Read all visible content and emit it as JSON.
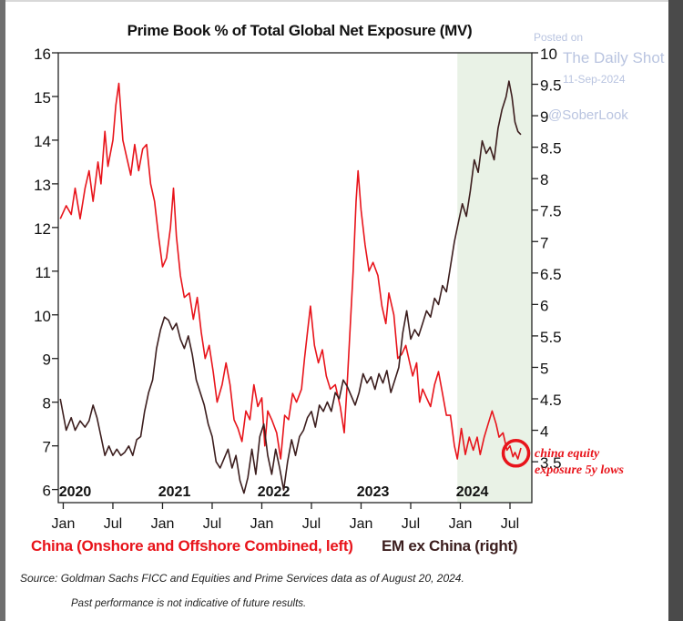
{
  "watermark": {
    "line1": "Posted on",
    "line2": "The Daily Shot",
    "line3": "11-Sep-2024",
    "line4": "@SoberLook"
  },
  "footer": {
    "source": "Source: Goldman Sachs FICC and Equities and Prime Services data as of August 20, 2024.",
    "disclaimer": "Past performance is not indicative of future results."
  },
  "chart_data": {
    "type": "line",
    "title": "Prime Book % of Total Global Net Exposure (MV)",
    "x_range": [
      2019.95,
      2024.72
    ],
    "left_axis": {
      "min": 5.7,
      "max": 16,
      "ticks": [
        6,
        7,
        8,
        9,
        10,
        11,
        12,
        13,
        14,
        15,
        16
      ]
    },
    "right_axis": {
      "min": 2.85,
      "max": 10,
      "ticks": [
        3.5,
        4,
        4.5,
        5,
        5.5,
        6,
        6.5,
        7,
        7.5,
        8,
        8.5,
        9,
        9.5,
        10
      ]
    },
    "year_labels": [
      {
        "label": "2020",
        "x": 2020.12
      },
      {
        "label": "2021",
        "x": 2021.12
      },
      {
        "label": "2022",
        "x": 2022.12
      },
      {
        "label": "2023",
        "x": 2023.12
      },
      {
        "label": "2024",
        "x": 2024.12
      }
    ],
    "month_ticks": [
      {
        "label": "Jan",
        "x": 2020.0
      },
      {
        "label": "Jul",
        "x": 2020.5
      },
      {
        "label": "Jan",
        "x": 2021.0
      },
      {
        "label": "Jul",
        "x": 2021.5
      },
      {
        "label": "Jan",
        "x": 2022.0
      },
      {
        "label": "Jul",
        "x": 2022.5
      },
      {
        "label": "Jan",
        "x": 2023.0
      },
      {
        "label": "Jul",
        "x": 2023.5
      },
      {
        "label": "Jan",
        "x": 2024.0
      },
      {
        "label": "Jul",
        "x": 2024.5
      }
    ],
    "shaded_region": {
      "from": 2023.97,
      "to": 2024.72,
      "color": "#e9f2e6"
    },
    "series": [
      {
        "name": "China (Onshore and Offshore Combined, left)",
        "axis": "left",
        "color": "#e8141b",
        "points": [
          [
            2019.97,
            12.2
          ],
          [
            2020.03,
            12.5
          ],
          [
            2020.08,
            12.3
          ],
          [
            2020.12,
            12.9
          ],
          [
            2020.17,
            12.2
          ],
          [
            2020.22,
            12.9
          ],
          [
            2020.26,
            13.3
          ],
          [
            2020.3,
            12.6
          ],
          [
            2020.35,
            13.5
          ],
          [
            2020.38,
            13.0
          ],
          [
            2020.42,
            14.2
          ],
          [
            2020.45,
            13.4
          ],
          [
            2020.5,
            14.0
          ],
          [
            2020.53,
            14.8
          ],
          [
            2020.56,
            15.3
          ],
          [
            2020.6,
            14.0
          ],
          [
            2020.64,
            13.6
          ],
          [
            2020.68,
            13.2
          ],
          [
            2020.72,
            13.9
          ],
          [
            2020.76,
            13.3
          ],
          [
            2020.8,
            13.8
          ],
          [
            2020.84,
            13.9
          ],
          [
            2020.88,
            13.0
          ],
          [
            2020.92,
            12.6
          ],
          [
            2020.96,
            11.8
          ],
          [
            2021.0,
            11.1
          ],
          [
            2021.04,
            11.3
          ],
          [
            2021.08,
            12.0
          ],
          [
            2021.11,
            12.9
          ],
          [
            2021.14,
            11.8
          ],
          [
            2021.18,
            10.9
          ],
          [
            2021.22,
            10.4
          ],
          [
            2021.27,
            10.5
          ],
          [
            2021.31,
            9.9
          ],
          [
            2021.35,
            10.4
          ],
          [
            2021.39,
            9.6
          ],
          [
            2021.43,
            9.0
          ],
          [
            2021.47,
            9.3
          ],
          [
            2021.51,
            8.7
          ],
          [
            2021.55,
            8.0
          ],
          [
            2021.6,
            8.4
          ],
          [
            2021.64,
            8.9
          ],
          [
            2021.68,
            8.4
          ],
          [
            2021.72,
            7.6
          ],
          [
            2021.76,
            7.4
          ],
          [
            2021.8,
            7.1
          ],
          [
            2021.84,
            7.8
          ],
          [
            2021.88,
            7.6
          ],
          [
            2021.92,
            8.4
          ],
          [
            2021.96,
            7.9
          ],
          [
            2022.0,
            8.1
          ],
          [
            2022.03,
            7.0
          ],
          [
            2022.06,
            7.8
          ],
          [
            2022.1,
            7.6
          ],
          [
            2022.15,
            7.3
          ],
          [
            2022.19,
            6.7
          ],
          [
            2022.23,
            7.7
          ],
          [
            2022.27,
            7.6
          ],
          [
            2022.31,
            8.2
          ],
          [
            2022.35,
            8.0
          ],
          [
            2022.4,
            8.3
          ],
          [
            2022.43,
            9.0
          ],
          [
            2022.46,
            9.6
          ],
          [
            2022.49,
            10.2
          ],
          [
            2022.53,
            9.3
          ],
          [
            2022.57,
            8.9
          ],
          [
            2022.61,
            9.2
          ],
          [
            2022.65,
            8.6
          ],
          [
            2022.69,
            8.3
          ],
          [
            2022.74,
            8.4
          ],
          [
            2022.79,
            7.9
          ],
          [
            2022.83,
            7.3
          ],
          [
            2022.86,
            8.4
          ],
          [
            2022.89,
            9.7
          ],
          [
            2022.92,
            11.0
          ],
          [
            2022.95,
            12.6
          ],
          [
            2022.97,
            13.3
          ],
          [
            2023.0,
            12.4
          ],
          [
            2023.04,
            11.6
          ],
          [
            2023.08,
            11.0
          ],
          [
            2023.12,
            11.2
          ],
          [
            2023.17,
            10.9
          ],
          [
            2023.21,
            10.2
          ],
          [
            2023.25,
            9.8
          ],
          [
            2023.28,
            10.5
          ],
          [
            2023.33,
            10.0
          ],
          [
            2023.37,
            9.0
          ],
          [
            2023.41,
            9.1
          ],
          [
            2023.45,
            9.3
          ],
          [
            2023.49,
            8.9
          ],
          [
            2023.52,
            8.6
          ],
          [
            2023.56,
            8.9
          ],
          [
            2023.59,
            8.0
          ],
          [
            2023.62,
            8.3
          ],
          [
            2023.66,
            8.1
          ],
          [
            2023.7,
            7.9
          ],
          [
            2023.74,
            8.4
          ],
          [
            2023.78,
            8.7
          ],
          [
            2023.82,
            8.2
          ],
          [
            2023.86,
            7.7
          ],
          [
            2023.9,
            7.7
          ],
          [
            2023.94,
            7.0
          ],
          [
            2023.97,
            6.7
          ],
          [
            2024.01,
            7.4
          ],
          [
            2024.05,
            6.8
          ],
          [
            2024.09,
            7.2
          ],
          [
            2024.13,
            6.9
          ],
          [
            2024.17,
            7.2
          ],
          [
            2024.2,
            6.8
          ],
          [
            2024.24,
            7.2
          ],
          [
            2024.28,
            7.5
          ],
          [
            2024.32,
            7.8
          ],
          [
            2024.36,
            7.5
          ],
          [
            2024.39,
            7.2
          ],
          [
            2024.43,
            7.3
          ],
          [
            2024.47,
            6.9
          ],
          [
            2024.5,
            7.0
          ],
          [
            2024.53,
            6.75
          ],
          [
            2024.55,
            6.85
          ],
          [
            2024.58,
            6.7
          ],
          [
            2024.61,
            6.95
          ]
        ]
      },
      {
        "name": "EM ex China (right)",
        "axis": "right",
        "color": "#3c1e1e",
        "points": [
          [
            2019.97,
            4.5
          ],
          [
            2020.03,
            4.0
          ],
          [
            2020.08,
            4.2
          ],
          [
            2020.12,
            4.0
          ],
          [
            2020.17,
            4.15
          ],
          [
            2020.22,
            4.05
          ],
          [
            2020.26,
            4.15
          ],
          [
            2020.3,
            4.4
          ],
          [
            2020.34,
            4.2
          ],
          [
            2020.38,
            3.9
          ],
          [
            2020.42,
            3.6
          ],
          [
            2020.46,
            3.75
          ],
          [
            2020.5,
            3.6
          ],
          [
            2020.54,
            3.7
          ],
          [
            2020.58,
            3.6
          ],
          [
            2020.62,
            3.65
          ],
          [
            2020.66,
            3.75
          ],
          [
            2020.7,
            3.6
          ],
          [
            2020.74,
            3.85
          ],
          [
            2020.78,
            3.9
          ],
          [
            2020.82,
            4.3
          ],
          [
            2020.86,
            4.6
          ],
          [
            2020.9,
            4.8
          ],
          [
            2020.94,
            5.3
          ],
          [
            2020.98,
            5.6
          ],
          [
            2021.02,
            5.8
          ],
          [
            2021.06,
            5.75
          ],
          [
            2021.1,
            5.6
          ],
          [
            2021.14,
            5.7
          ],
          [
            2021.18,
            5.45
          ],
          [
            2021.22,
            5.3
          ],
          [
            2021.26,
            5.5
          ],
          [
            2021.3,
            5.2
          ],
          [
            2021.34,
            4.8
          ],
          [
            2021.38,
            4.6
          ],
          [
            2021.42,
            4.4
          ],
          [
            2021.46,
            4.1
          ],
          [
            2021.5,
            3.9
          ],
          [
            2021.54,
            3.5
          ],
          [
            2021.58,
            3.4
          ],
          [
            2021.62,
            3.55
          ],
          [
            2021.66,
            3.7
          ],
          [
            2021.7,
            3.4
          ],
          [
            2021.74,
            3.6
          ],
          [
            2021.78,
            3.2
          ],
          [
            2021.82,
            3.0
          ],
          [
            2021.86,
            3.25
          ],
          [
            2021.9,
            3.7
          ],
          [
            2021.94,
            3.3
          ],
          [
            2021.98,
            3.9
          ],
          [
            2022.02,
            4.1
          ],
          [
            2022.06,
            3.6
          ],
          [
            2022.1,
            3.3
          ],
          [
            2022.14,
            3.7
          ],
          [
            2022.18,
            3.4
          ],
          [
            2022.22,
            3.05
          ],
          [
            2022.26,
            3.5
          ],
          [
            2022.3,
            3.85
          ],
          [
            2022.34,
            3.6
          ],
          [
            2022.38,
            3.9
          ],
          [
            2022.42,
            4.0
          ],
          [
            2022.46,
            4.2
          ],
          [
            2022.5,
            4.3
          ],
          [
            2022.54,
            4.05
          ],
          [
            2022.58,
            4.4
          ],
          [
            2022.62,
            4.3
          ],
          [
            2022.66,
            4.45
          ],
          [
            2022.7,
            4.3
          ],
          [
            2022.74,
            4.6
          ],
          [
            2022.78,
            4.5
          ],
          [
            2022.82,
            4.8
          ],
          [
            2022.86,
            4.7
          ],
          [
            2022.9,
            4.55
          ],
          [
            2022.94,
            4.4
          ],
          [
            2022.98,
            4.6
          ],
          [
            2023.02,
            4.9
          ],
          [
            2023.06,
            4.75
          ],
          [
            2023.1,
            4.85
          ],
          [
            2023.14,
            4.65
          ],
          [
            2023.18,
            4.9
          ],
          [
            2023.22,
            4.75
          ],
          [
            2023.26,
            4.95
          ],
          [
            2023.3,
            4.6
          ],
          [
            2023.34,
            4.8
          ],
          [
            2023.38,
            5.0
          ],
          [
            2023.42,
            5.55
          ],
          [
            2023.46,
            5.9
          ],
          [
            2023.5,
            5.45
          ],
          [
            2023.54,
            5.6
          ],
          [
            2023.58,
            5.5
          ],
          [
            2023.62,
            5.7
          ],
          [
            2023.66,
            5.9
          ],
          [
            2023.7,
            5.8
          ],
          [
            2023.74,
            6.1
          ],
          [
            2023.78,
            6.0
          ],
          [
            2023.82,
            6.3
          ],
          [
            2023.86,
            6.2
          ],
          [
            2023.9,
            6.6
          ],
          [
            2023.94,
            7.0
          ],
          [
            2023.98,
            7.3
          ],
          [
            2024.02,
            7.6
          ],
          [
            2024.06,
            7.4
          ],
          [
            2024.1,
            7.8
          ],
          [
            2024.14,
            8.3
          ],
          [
            2024.18,
            8.1
          ],
          [
            2024.22,
            8.6
          ],
          [
            2024.26,
            8.4
          ],
          [
            2024.3,
            8.5
          ],
          [
            2024.34,
            8.3
          ],
          [
            2024.38,
            8.8
          ],
          [
            2024.42,
            9.1
          ],
          [
            2024.46,
            9.3
          ],
          [
            2024.49,
            9.55
          ],
          [
            2024.52,
            9.3
          ],
          [
            2024.55,
            8.9
          ],
          [
            2024.58,
            8.75
          ],
          [
            2024.61,
            8.7
          ]
        ]
      }
    ],
    "annotation": {
      "line1": "china equity",
      "line2": "exposure 5y lows",
      "color": "#e8141b",
      "marker_x": 2024.56,
      "marker_y_left": 6.83
    }
  }
}
